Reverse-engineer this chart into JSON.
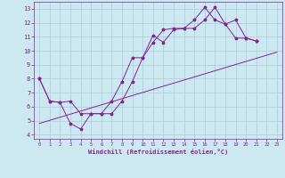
{
  "xlabel": "Windchill (Refroidissement éolien,°C)",
  "background_color": "#cce8f0",
  "grid_color": "#aaccdd",
  "line_color": "#882299",
  "xlim": [
    -0.5,
    23.5
  ],
  "ylim": [
    3.7,
    13.5
  ],
  "xticks": [
    0,
    1,
    2,
    3,
    4,
    5,
    6,
    7,
    8,
    9,
    10,
    11,
    12,
    13,
    14,
    15,
    16,
    17,
    18,
    19,
    20,
    21,
    22,
    23
  ],
  "yticks": [
    4,
    5,
    6,
    7,
    8,
    9,
    10,
    11,
    12,
    13
  ],
  "series1_x": [
    0,
    1,
    2,
    3,
    4,
    5,
    6,
    7,
    8,
    9,
    10,
    11,
    12,
    13,
    14,
    15,
    16,
    17,
    18,
    19,
    20,
    21
  ],
  "series1_y": [
    8.0,
    6.4,
    6.3,
    4.8,
    4.4,
    5.5,
    5.5,
    5.5,
    6.4,
    7.8,
    9.5,
    11.1,
    10.6,
    11.5,
    11.6,
    11.6,
    12.2,
    13.1,
    11.9,
    12.2,
    10.9,
    10.7
  ],
  "series2_x": [
    0,
    1,
    2,
    3,
    4,
    5,
    6,
    7,
    8,
    9,
    10,
    11,
    12,
    13,
    14,
    15,
    16,
    17,
    18,
    19,
    20,
    21,
    22,
    23
  ],
  "series2_y": [
    8.0,
    6.4,
    6.3,
    6.4,
    5.5,
    5.5,
    5.5,
    6.4,
    7.8,
    9.5,
    9.5,
    10.6,
    11.5,
    11.6,
    11.6,
    12.2,
    13.1,
    12.2,
    11.9,
    10.9,
    10.9,
    10.7,
    null,
    null
  ],
  "trend_x": [
    0,
    23
  ],
  "trend_y": [
    4.8,
    9.9
  ]
}
